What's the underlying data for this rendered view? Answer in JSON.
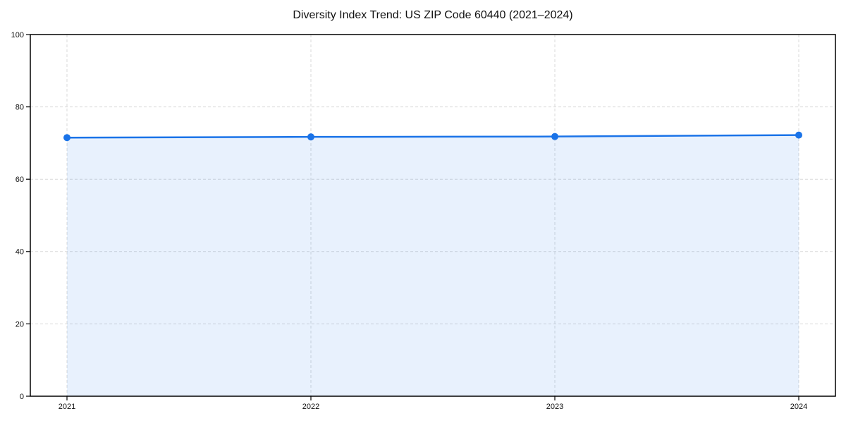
{
  "figure": {
    "background": "#ffffff"
  },
  "chart_data": {
    "type": "line",
    "title": "Diversity Index Trend: US ZIP Code 60440 (2021–2024)",
    "categories": [
      "2021",
      "2022",
      "2023",
      "2024"
    ],
    "series": [
      {
        "name": "Diversity Index",
        "values": [
          71.5,
          71.7,
          71.8,
          72.2
        ]
      }
    ],
    "xlabel": "",
    "ylabel": "",
    "ylim": [
      0,
      100
    ],
    "yticks": [
      0,
      20,
      40,
      60,
      80,
      100
    ],
    "grid": "dashed-both-axes",
    "legend": "none",
    "area_fill": true,
    "marker": "circle",
    "colors": {
      "line": "#1a73e8",
      "marker": "#1a73e8",
      "area_fill": "rgba(26,115,232,0.10)",
      "grid": "#d9d9d9",
      "spine": "#000000",
      "tick_label": "#111111",
      "title": "#111111",
      "background": "#ffffff"
    }
  }
}
